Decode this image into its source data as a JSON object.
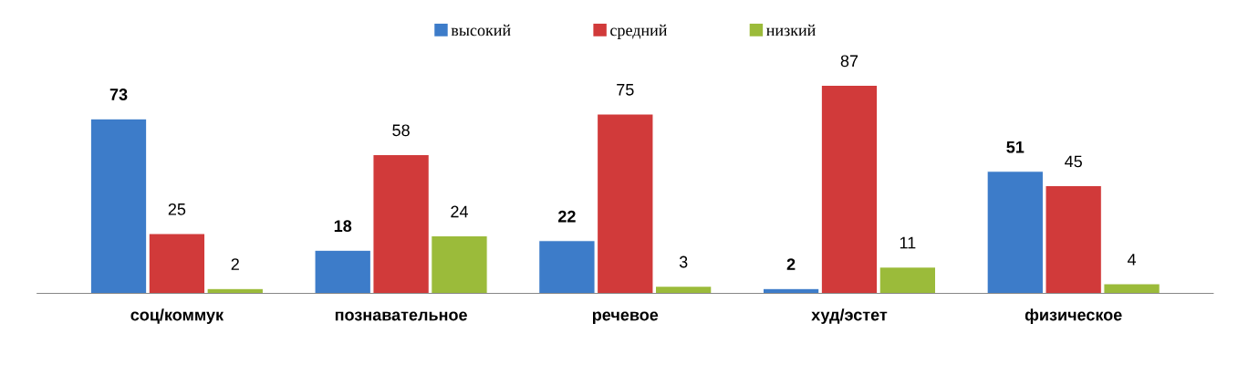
{
  "chart_data": {
    "type": "bar",
    "categories": [
      "соц/коммук",
      "познавательное",
      "речевое",
      "худ/эстет",
      "физическое"
    ],
    "series": [
      {
        "name": "высокий",
        "color": "#3d7cc9",
        "values": [
          73,
          18,
          22,
          2,
          51
        ]
      },
      {
        "name": "средний",
        "color": "#d13a3a",
        "values": [
          25,
          58,
          75,
          87,
          45
        ]
      },
      {
        "name": "низкий",
        "color": "#9bbb3a",
        "values": [
          2,
          24,
          3,
          11,
          4
        ]
      }
    ],
    "data_labels": true,
    "legend": "top",
    "grid": false
  }
}
